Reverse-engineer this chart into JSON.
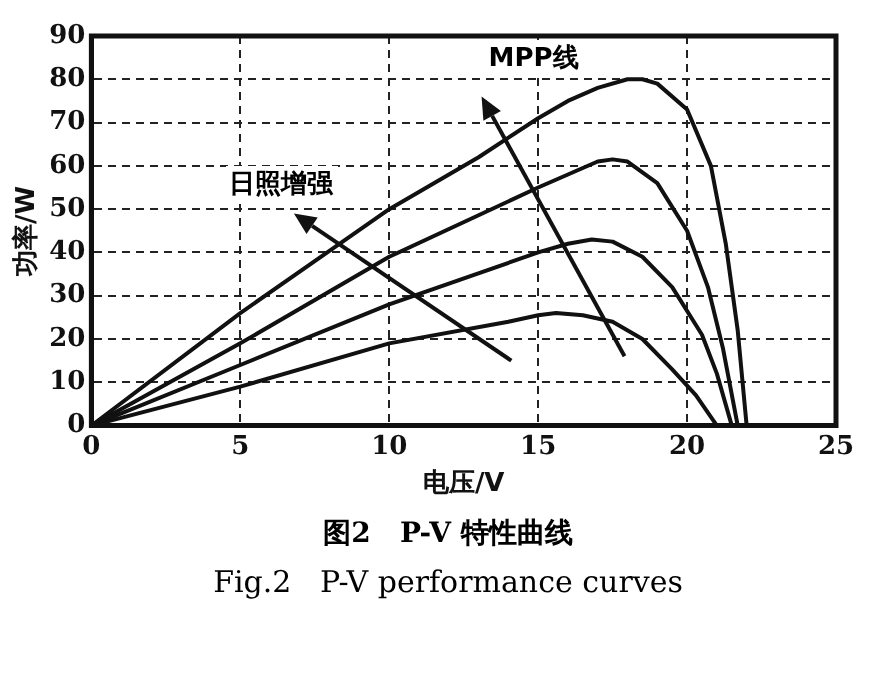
{
  "chart_data": {
    "type": "line",
    "title": "图2   P-V 特性曲线",
    "subtitle": "Fig.2   P-V performance curves",
    "xlabel": "电压/V",
    "ylabel": "功率/W",
    "annotations": [
      "MPP线",
      "日照增强"
    ],
    "xlim": [
      0,
      25
    ],
    "xticks": [
      0,
      5,
      10,
      15,
      20,
      25
    ],
    "ylim": [
      0,
      90
    ],
    "yticks": [
      0,
      10,
      20,
      30,
      40,
      50,
      60,
      70,
      80,
      90
    ],
    "grid": true,
    "legend": false,
    "marker": "none",
    "line_style": "solid",
    "series": [
      {
        "color": "#111111",
        "x": [
          0,
          5,
          10,
          13,
          15,
          16,
          17,
          18,
          18.5,
          19,
          20,
          20.8,
          21.3,
          21.7,
          22
        ],
        "values": [
          0,
          26,
          50,
          62,
          71,
          75,
          78,
          80,
          80,
          79,
          73,
          60,
          42,
          22,
          0
        ]
      },
      {
        "color": "#111111",
        "x": [
          0,
          5,
          10,
          15,
          16,
          17,
          17.5,
          18,
          19,
          20,
          20.7,
          21.2,
          21.7
        ],
        "values": [
          0,
          19,
          39,
          55,
          58,
          61,
          61.5,
          61,
          56,
          45,
          32,
          18,
          0
        ]
      },
      {
        "color": "#111111",
        "x": [
          0,
          5,
          10,
          15,
          16,
          16.8,
          17.5,
          18.5,
          19.5,
          20.5,
          21,
          21.5
        ],
        "values": [
          0,
          14,
          28,
          40,
          42,
          43,
          42.5,
          39,
          32,
          21,
          12,
          0
        ]
      },
      {
        "color": "#111111",
        "x": [
          0,
          5,
          10,
          14,
          15,
          15.6,
          16.5,
          17.5,
          18.5,
          19.5,
          20.3,
          21
        ],
        "values": [
          0,
          9,
          19,
          24,
          25.5,
          26,
          25.5,
          24,
          20,
          13,
          7,
          0
        ]
      }
    ]
  }
}
